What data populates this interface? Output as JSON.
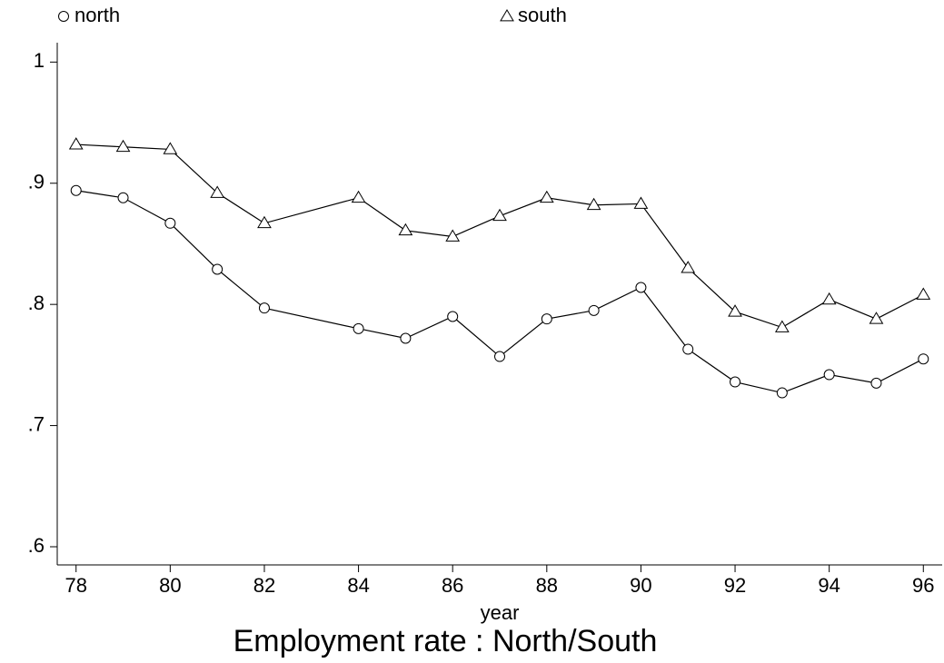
{
  "chart_data": {
    "type": "line",
    "title": "Employment rate : North/South",
    "x_label": "year",
    "x": [
      78,
      79,
      80,
      81,
      82,
      84,
      85,
      86,
      87,
      88,
      89,
      90,
      91,
      92,
      93,
      94,
      95,
      96
    ],
    "series": [
      {
        "name": "north",
        "color": "#000000",
        "marker": "circle",
        "values": [
          0.894,
          0.888,
          0.867,
          0.829,
          0.797,
          0.78,
          0.772,
          0.79,
          0.757,
          0.788,
          0.795,
          0.814,
          0.763,
          0.736,
          0.727,
          0.742,
          0.735,
          0.755
        ]
      },
      {
        "name": "south",
        "color": "#000000",
        "marker": "triangle",
        "values": [
          0.932,
          0.93,
          0.928,
          0.892,
          0.867,
          0.888,
          0.861,
          0.856,
          0.873,
          0.888,
          0.882,
          0.883,
          0.83,
          0.794,
          0.781,
          0.804,
          0.788,
          0.808
        ]
      }
    ],
    "xlim": [
      77.6,
      96.4
    ],
    "xticks": [
      78,
      80,
      82,
      84,
      86,
      88,
      90,
      92,
      94,
      96
    ],
    "ylim": [
      0.585,
      1.016
    ],
    "yticks": [
      {
        "value": 0.6,
        "label": ".6"
      },
      {
        "value": 0.7,
        "label": ".7"
      },
      {
        "value": 0.8,
        "label": ".8"
      },
      {
        "value": 0.9,
        "label": ".9"
      },
      1
    ],
    "grid": false
  }
}
